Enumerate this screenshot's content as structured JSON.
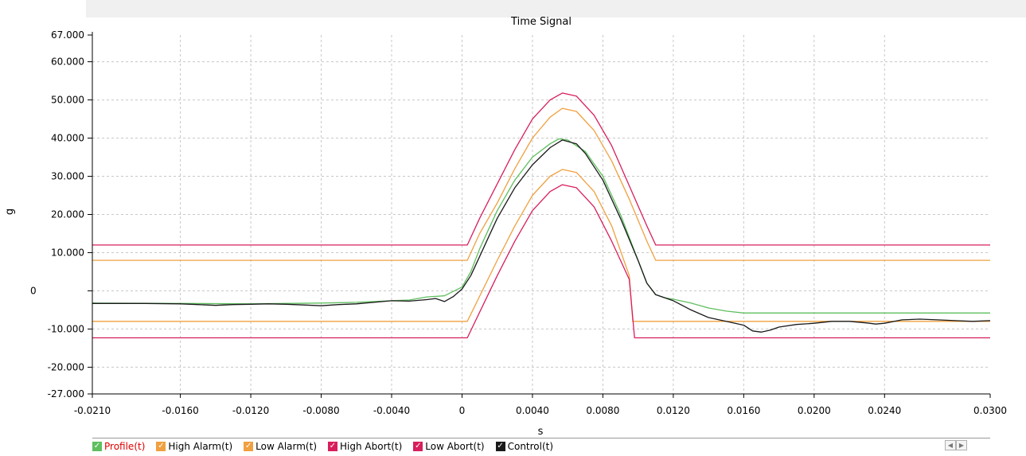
{
  "chart_data": {
    "type": "line",
    "title": "Time Signal",
    "xlabel": "s",
    "ylabel": "g",
    "xlim": [
      -0.021,
      0.03
    ],
    "ylim": [
      -27,
      67
    ],
    "x_ticks": [
      {
        "value": -0.021,
        "label": "-0.0210"
      },
      {
        "value": -0.016,
        "label": "-0.0160"
      },
      {
        "value": -0.012,
        "label": "-0.0120"
      },
      {
        "value": -0.008,
        "label": "-0.0080"
      },
      {
        "value": -0.004,
        "label": "-0.0040"
      },
      {
        "value": 0.0,
        "label": "0"
      },
      {
        "value": 0.004,
        "label": "0.0040"
      },
      {
        "value": 0.008,
        "label": "0.0080"
      },
      {
        "value": 0.012,
        "label": "0.0120"
      },
      {
        "value": 0.016,
        "label": "0.0160"
      },
      {
        "value": 0.02,
        "label": "0.0200"
      },
      {
        "value": 0.024,
        "label": "0.0240"
      },
      {
        "value": 0.03,
        "label": "0.0300"
      }
    ],
    "y_ticks": [
      {
        "value": 67,
        "label": "67.000"
      },
      {
        "value": 60,
        "label": "60.000"
      },
      {
        "value": 50,
        "label": "50.000"
      },
      {
        "value": 40,
        "label": "40.000"
      },
      {
        "value": 30,
        "label": "30.000"
      },
      {
        "value": 20,
        "label": "20.000"
      },
      {
        "value": 10,
        "label": "10.000"
      },
      {
        "value": 0,
        "label": "0"
      },
      {
        "value": -10,
        "label": "-10.000"
      },
      {
        "value": -20,
        "label": "-20.000"
      },
      {
        "value": -27,
        "label": "-27.000"
      }
    ],
    "grid": true,
    "legend_position": "bottom",
    "series": [
      {
        "name": "Profile(t)",
        "color": "#5fbf5f",
        "checked": true,
        "label_color": "#e00000",
        "points": [
          [
            -0.021,
            -3.2
          ],
          [
            -0.016,
            -3.3
          ],
          [
            -0.012,
            -3.4
          ],
          [
            -0.008,
            -3.2
          ],
          [
            -0.006,
            -3.0
          ],
          [
            -0.004,
            -2.6
          ],
          [
            -0.003,
            -2.4
          ],
          [
            -0.002,
            -1.6
          ],
          [
            -0.001,
            -1.3
          ],
          [
            0.0,
            1.0
          ],
          [
            0.0005,
            5.0
          ],
          [
            0.001,
            11.0
          ],
          [
            0.0015,
            16.0
          ],
          [
            0.002,
            21.0
          ],
          [
            0.003,
            29.0
          ],
          [
            0.004,
            35.0
          ],
          [
            0.005,
            38.5
          ],
          [
            0.0055,
            39.8
          ],
          [
            0.006,
            39.5
          ],
          [
            0.007,
            36.5
          ],
          [
            0.008,
            30.0
          ],
          [
            0.009,
            20.0
          ],
          [
            0.01,
            8.0
          ],
          [
            0.0105,
            2.0
          ],
          [
            0.011,
            -1.0
          ],
          [
            0.0115,
            -1.8
          ],
          [
            0.012,
            -2.2
          ],
          [
            0.013,
            -3.2
          ],
          [
            0.014,
            -4.5
          ],
          [
            0.015,
            -5.3
          ],
          [
            0.016,
            -5.8
          ],
          [
            0.02,
            -5.8
          ],
          [
            0.024,
            -5.8
          ],
          [
            0.03,
            -5.8
          ]
        ]
      },
      {
        "name": "High Alarm(t)",
        "color": "#f0a040",
        "checked": true,
        "label_color": "#000000",
        "points": [
          [
            -0.021,
            8.0
          ],
          [
            0.0003,
            8.0
          ],
          [
            0.001,
            15.0
          ],
          [
            0.002,
            23.0
          ],
          [
            0.003,
            32.0
          ],
          [
            0.004,
            40.0
          ],
          [
            0.005,
            45.5
          ],
          [
            0.0057,
            47.8
          ],
          [
            0.0065,
            47.0
          ],
          [
            0.0075,
            42.0
          ],
          [
            0.0085,
            34.0
          ],
          [
            0.0095,
            24.0
          ],
          [
            0.0105,
            13.0
          ],
          [
            0.011,
            8.0
          ],
          [
            0.03,
            8.0
          ]
        ]
      },
      {
        "name": "Low Alarm(t)",
        "color": "#f0a040",
        "checked": true,
        "label_color": "#000000",
        "points": [
          [
            -0.021,
            -8.0
          ],
          [
            0.0003,
            -8.0
          ],
          [
            0.002,
            8.0
          ],
          [
            0.003,
            17.0
          ],
          [
            0.004,
            25.0
          ],
          [
            0.005,
            30.0
          ],
          [
            0.0057,
            31.8
          ],
          [
            0.0065,
            31.0
          ],
          [
            0.0075,
            26.0
          ],
          [
            0.0085,
            17.0
          ],
          [
            0.0095,
            4.0
          ],
          [
            0.0097,
            -8.0
          ],
          [
            0.03,
            -8.0
          ]
        ]
      },
      {
        "name": "High Abort(t)",
        "color": "#d81e5b",
        "checked": true,
        "label_color": "#000000",
        "points": [
          [
            -0.021,
            12.0
          ],
          [
            0.0003,
            12.0
          ],
          [
            0.001,
            19.0
          ],
          [
            0.002,
            28.0
          ],
          [
            0.003,
            37.0
          ],
          [
            0.004,
            45.0
          ],
          [
            0.005,
            50.0
          ],
          [
            0.0057,
            51.8
          ],
          [
            0.0065,
            51.0
          ],
          [
            0.0075,
            46.0
          ],
          [
            0.0085,
            38.0
          ],
          [
            0.0095,
            27.5
          ],
          [
            0.0105,
            17.0
          ],
          [
            0.011,
            12.0
          ],
          [
            0.03,
            12.0
          ]
        ]
      },
      {
        "name": "Low Abort(t)",
        "color": "#d81e5b",
        "checked": true,
        "label_color": "#000000",
        "points": [
          [
            -0.021,
            -12.3
          ],
          [
            0.0003,
            -12.3
          ],
          [
            0.002,
            4.0
          ],
          [
            0.003,
            13.0
          ],
          [
            0.004,
            21.0
          ],
          [
            0.005,
            26.0
          ],
          [
            0.0057,
            27.8
          ],
          [
            0.0065,
            27.0
          ],
          [
            0.0075,
            22.0
          ],
          [
            0.0085,
            13.0
          ],
          [
            0.0095,
            3.0
          ],
          [
            0.0098,
            -12.3
          ],
          [
            0.03,
            -12.3
          ]
        ]
      },
      {
        "name": "Control(t)",
        "color": "#1a1a1a",
        "checked": true,
        "label_color": "#000000",
        "points": [
          [
            -0.021,
            -3.3
          ],
          [
            -0.018,
            -3.3
          ],
          [
            -0.016,
            -3.4
          ],
          [
            -0.015,
            -3.6
          ],
          [
            -0.014,
            -3.8
          ],
          [
            -0.013,
            -3.6
          ],
          [
            -0.012,
            -3.5
          ],
          [
            -0.011,
            -3.4
          ],
          [
            -0.01,
            -3.5
          ],
          [
            -0.009,
            -3.7
          ],
          [
            -0.008,
            -3.9
          ],
          [
            -0.007,
            -3.6
          ],
          [
            -0.006,
            -3.4
          ],
          [
            -0.005,
            -3.0
          ],
          [
            -0.004,
            -2.6
          ],
          [
            -0.003,
            -2.7
          ],
          [
            -0.002,
            -2.3
          ],
          [
            -0.0015,
            -2.0
          ],
          [
            -0.001,
            -2.8
          ],
          [
            -0.0005,
            -1.5
          ],
          [
            0.0,
            0.5
          ],
          [
            0.0005,
            4.0
          ],
          [
            0.001,
            9.0
          ],
          [
            0.0015,
            14.0
          ],
          [
            0.002,
            19.0
          ],
          [
            0.003,
            27.0
          ],
          [
            0.004,
            33.0
          ],
          [
            0.005,
            37.5
          ],
          [
            0.0057,
            39.5
          ],
          [
            0.0065,
            38.5
          ],
          [
            0.007,
            36.0
          ],
          [
            0.008,
            29.0
          ],
          [
            0.009,
            19.0
          ],
          [
            0.01,
            8.0
          ],
          [
            0.0105,
            2.0
          ],
          [
            0.011,
            -1.0
          ],
          [
            0.012,
            -2.6
          ],
          [
            0.013,
            -5.0
          ],
          [
            0.014,
            -7.0
          ],
          [
            0.015,
            -8.0
          ],
          [
            0.016,
            -9.0
          ],
          [
            0.0165,
            -10.5
          ],
          [
            0.017,
            -10.8
          ],
          [
            0.0175,
            -10.3
          ],
          [
            0.018,
            -9.5
          ],
          [
            0.019,
            -8.8
          ],
          [
            0.02,
            -8.5
          ],
          [
            0.021,
            -8.0
          ],
          [
            0.022,
            -8.0
          ],
          [
            0.023,
            -8.4
          ],
          [
            0.0235,
            -8.7
          ],
          [
            0.024,
            -8.5
          ],
          [
            0.025,
            -7.6
          ],
          [
            0.026,
            -7.4
          ],
          [
            0.027,
            -7.6
          ],
          [
            0.028,
            -7.8
          ],
          [
            0.029,
            -8.0
          ],
          [
            0.03,
            -7.8
          ]
        ]
      }
    ]
  },
  "icons": {
    "scroll_left": "triangle-left-icon",
    "scroll_right": "triangle-right-icon"
  }
}
